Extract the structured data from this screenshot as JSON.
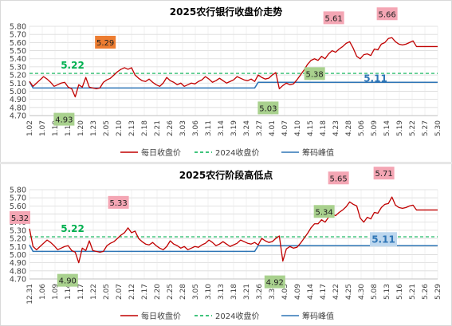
{
  "chart_data": [
    {
      "type": "line",
      "title": "2025农行银行收盘价走势",
      "ylim": [
        4.7,
        5.8
      ],
      "yticks": [
        "4.70",
        "4.80",
        "4.90",
        "5.00",
        "5.10",
        "5.20",
        "5.30",
        "5.40",
        "5.50",
        "5.60",
        "5.70",
        "5.80"
      ],
      "xlabels": [
        "1.02",
        "1.07",
        "1.10",
        "1.15",
        "1.20",
        "1.23",
        "2.05",
        "2.10",
        "2.13",
        "2.18",
        "2.21",
        "2.26",
        "3.03",
        "3.06",
        "3.11",
        "3.14",
        "3.19",
        "3.24",
        "3.27",
        "4.01",
        "4.07",
        "4.10",
        "4.15",
        "4.18",
        "4.23",
        "4.28",
        "5.06",
        "5.09",
        "5.14",
        "5.19",
        "5.22",
        "5.27",
        "5.30"
      ],
      "series": [
        {
          "name": "每日收盘价",
          "color": "#c00000",
          "values": [
            5.12,
            5.06,
            5.1,
            5.14,
            5.18,
            5.15,
            5.11,
            5.06,
            5.08,
            5.1,
            5.11,
            5.05,
            5.03,
            4.93,
            5.08,
            5.05,
            5.17,
            5.05,
            5.04,
            5.03,
            5.04,
            5.11,
            5.14,
            5.16,
            5.2,
            5.24,
            5.27,
            5.29,
            5.27,
            5.29,
            5.2,
            5.16,
            5.13,
            5.12,
            5.15,
            5.11,
            5.08,
            5.06,
            5.1,
            5.17,
            5.13,
            5.11,
            5.08,
            5.1,
            5.06,
            5.08,
            5.1,
            5.09,
            5.12,
            5.14,
            5.18,
            5.15,
            5.11,
            5.13,
            5.16,
            5.13,
            5.1,
            5.12,
            5.14,
            5.18,
            5.16,
            5.14,
            5.13,
            5.15,
            5.12,
            5.2,
            5.17,
            5.15,
            5.16,
            5.2,
            5.23,
            5.03,
            5.07,
            5.1,
            5.08,
            5.09,
            5.14,
            5.2,
            5.26,
            5.33,
            5.38,
            5.4,
            5.38,
            5.43,
            5.4,
            5.46,
            5.5,
            5.48,
            5.52,
            5.55,
            5.59,
            5.61,
            5.53,
            5.43,
            5.4,
            5.45,
            5.46,
            5.44,
            5.52,
            5.51,
            5.58,
            5.6,
            5.65,
            5.66,
            5.61,
            5.58,
            5.57,
            5.58,
            5.6,
            5.62,
            5.55,
            5.55,
            5.55,
            5.55,
            5.55,
            5.55,
            5.55
          ]
        },
        {
          "name": "2024收盘价",
          "color": "#00b050",
          "value": 5.22,
          "label": "5.22"
        },
        {
          "name": "筹码峰值",
          "color": "#2e75b6",
          "value": 5.11,
          "label": "5.11",
          "path": [
            [
              0,
              5.12
            ],
            [
              1,
              5.04
            ],
            [
              64,
              5.04
            ],
            [
              65,
              5.11
            ],
            [
              116,
              5.11
            ]
          ]
        }
      ],
      "annotations": [
        {
          "text": "5.61",
          "bg": "#f4a6b4",
          "color": "#222222"
        },
        {
          "text": "5.66",
          "bg": "#f4a6b4",
          "color": "#222222"
        },
        {
          "text": "5.29",
          "bg": "#ed7d31",
          "color": "#222222"
        },
        {
          "text": "5.22",
          "bg": "none",
          "color": "#00b050"
        },
        {
          "text": "5.38",
          "bg": "#a9d18e",
          "color": "#222222"
        },
        {
          "text": "5.11",
          "bg": "none",
          "color": "#2e75b6"
        },
        {
          "text": "5.03",
          "bg": "#a9d18e",
          "color": "#222222"
        },
        {
          "text": "4.93",
          "bg": "#a9d18e",
          "color": "#222222"
        }
      ],
      "legend": {
        "position": "bottom",
        "items": [
          "每日收盘价",
          "2024收盘价",
          "筹码峰值"
        ]
      },
      "grid": true
    },
    {
      "type": "line",
      "title": "2025农行阶段高低点",
      "ylim": [
        4.7,
        5.8
      ],
      "yticks": [
        "4.70",
        "4.80",
        "4.90",
        "5.00",
        "5.10",
        "5.20",
        "5.30",
        "5.40",
        "5.50",
        "5.60",
        "5.70",
        "5.80"
      ],
      "xlabels": [
        "12.31",
        "1.06",
        "1.09",
        "1.14",
        "1.17",
        "1.22",
        "2.05",
        "2.07",
        "2.12",
        "2.17",
        "2.20",
        "2.25",
        "2.28",
        "3.05",
        "3.10",
        "3.13",
        "3.18",
        "3.21",
        "3.26",
        "3.31",
        "4.03",
        "4.09",
        "4.14",
        "4.17",
        "4.22",
        "4.25",
        "4.30",
        "5.08",
        "5.13",
        "5.16",
        "5.21",
        "5.26",
        "5.29"
      ],
      "series": [
        {
          "name": "每日收盘价",
          "color": "#c00000",
          "values": [
            5.32,
            5.1,
            5.06,
            5.1,
            5.14,
            5.18,
            5.15,
            5.11,
            5.06,
            5.08,
            5.1,
            5.11,
            5.05,
            5.03,
            4.9,
            5.08,
            5.05,
            5.17,
            5.05,
            5.04,
            5.03,
            5.04,
            5.11,
            5.14,
            5.16,
            5.2,
            5.24,
            5.27,
            5.33,
            5.27,
            5.29,
            5.2,
            5.16,
            5.13,
            5.12,
            5.15,
            5.11,
            5.08,
            5.06,
            5.1,
            5.17,
            5.13,
            5.11,
            5.08,
            5.1,
            5.06,
            5.08,
            5.1,
            5.09,
            5.12,
            5.14,
            5.18,
            5.15,
            5.11,
            5.13,
            5.16,
            5.13,
            5.1,
            5.12,
            5.14,
            5.18,
            5.16,
            5.14,
            5.13,
            5.15,
            5.12,
            5.2,
            5.17,
            5.15,
            5.16,
            5.2,
            5.23,
            4.92,
            5.07,
            5.1,
            5.08,
            5.09,
            5.14,
            5.2,
            5.26,
            5.33,
            5.38,
            5.38,
            5.43,
            5.4,
            5.46,
            5.5,
            5.48,
            5.52,
            5.55,
            5.59,
            5.65,
            5.62,
            5.6,
            5.45,
            5.4,
            5.46,
            5.44,
            5.52,
            5.51,
            5.58,
            5.62,
            5.63,
            5.71,
            5.61,
            5.58,
            5.57,
            5.58,
            5.6,
            5.61,
            5.55,
            5.55,
            5.55,
            5.55,
            5.55,
            5.55,
            5.55
          ]
        },
        {
          "name": "2024收盘价",
          "color": "#00b050",
          "value": 5.22,
          "label": "5.22"
        },
        {
          "name": "筹码峰值",
          "color": "#2e75b6",
          "value": 5.11,
          "label": "5.11",
          "path": [
            [
              0,
              5.12
            ],
            [
              1,
              5.04
            ],
            [
              64,
              5.04
            ],
            [
              65,
              5.11
            ],
            [
              116,
              5.11
            ]
          ]
        }
      ],
      "annotations": [
        {
          "text": "5.65",
          "bg": "#f4a6b4",
          "color": "#222222"
        },
        {
          "text": "5.71",
          "bg": "#f4a6b4",
          "color": "#222222"
        },
        {
          "text": "5.33",
          "bg": "#f4a6b4",
          "color": "#222222"
        },
        {
          "text": "5.32",
          "bg": "#f4a6b4",
          "color": "#222222"
        },
        {
          "text": "5.22",
          "bg": "none",
          "color": "#00b050"
        },
        {
          "text": "5.34",
          "bg": "#a9d18e",
          "color": "#222222"
        },
        {
          "text": "5.11",
          "bg": "#bdd7ee",
          "color": "#2e75b6"
        },
        {
          "text": "4.92",
          "bg": "#a9d18e",
          "color": "#222222"
        },
        {
          "text": "4.90",
          "bg": "#a9d18e",
          "color": "#222222"
        }
      ],
      "legend": {
        "position": "bottom",
        "items": [
          "每日收盘价",
          "2024收盘价",
          "筹码峰值"
        ]
      },
      "grid": true
    }
  ]
}
